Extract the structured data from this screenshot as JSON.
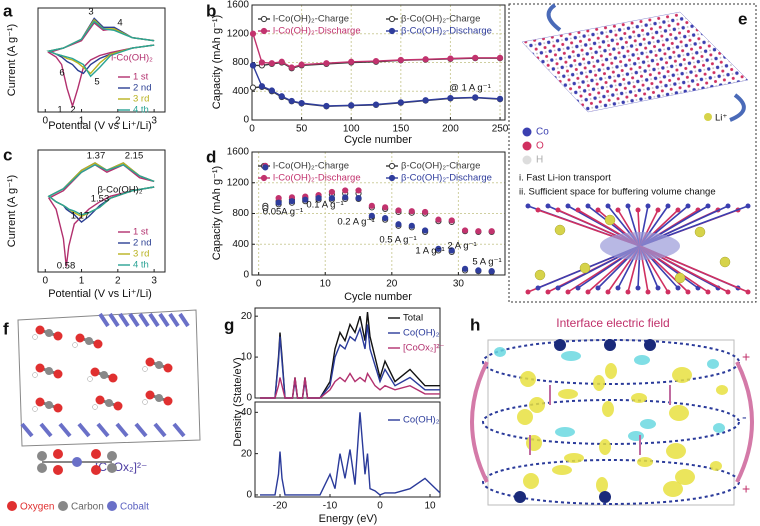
{
  "chart_data": [
    {
      "type": "line",
      "panel": "a",
      "x_label": "Potential (V vs Li⁺/Li)",
      "y_label": "Current (A g⁻¹)",
      "x": [
        3.0,
        2.4,
        1.8,
        1.5,
        1.25,
        1.05,
        0.9,
        0.75,
        0.6,
        0.45,
        0.3,
        0.1,
        0.5,
        1.0,
        1.35,
        1.6,
        1.9,
        2.4,
        3.0
      ],
      "xlim": [
        -0.2,
        3.3
      ],
      "ylim": [
        -4.2,
        2.8
      ],
      "xticks": [
        0,
        1,
        2,
        3
      ],
      "series": [
        {
          "name": "1 st",
          "color": "#b2306e",
          "values": [
            0.3,
            0.1,
            -0.2,
            -0.4,
            -0.7,
            -1.2,
            -2.6,
            -3.8,
            -2.6,
            -1.0,
            -0.5,
            -0.2,
            0.1,
            0.6,
            1.8,
            1.3,
            1.4,
            0.8,
            0.6
          ]
        },
        {
          "name": "2 nd",
          "color": "#2b3f93",
          "values": [
            0.3,
            0.1,
            -0.3,
            -0.6,
            -1.0,
            -1.6,
            -1.4,
            -1.0,
            -0.8,
            -0.5,
            -0.3,
            -0.1,
            0.1,
            0.7,
            2.1,
            1.5,
            1.5,
            0.8,
            0.6
          ]
        },
        {
          "name": "3 rd",
          "color": "#b8b21e",
          "values": [
            0.3,
            0.1,
            -0.3,
            -0.9,
            -1.6,
            -1.2,
            -0.9,
            -0.7,
            -0.6,
            -0.4,
            -0.3,
            -0.1,
            0.1,
            0.7,
            2.0,
            1.4,
            1.4,
            0.8,
            0.6
          ]
        },
        {
          "name": "4 th",
          "color": "#2aa395",
          "values": [
            0.3,
            0.1,
            -0.4,
            -1.2,
            -1.8,
            -1.0,
            -0.8,
            -0.6,
            -0.5,
            -0.4,
            -0.3,
            -0.1,
            0.1,
            0.7,
            1.9,
            1.4,
            1.3,
            0.8,
            0.6
          ]
        }
      ],
      "annotations": [
        "1",
        "2",
        "3",
        "4",
        "5",
        "6",
        "l-Co(OH)₂"
      ]
    },
    {
      "type": "line",
      "markers": true,
      "grid": true,
      "panel": "b",
      "x_label": "Cycle number",
      "y_label": "Capacity (mAh g⁻¹)",
      "x": [
        1,
        10,
        20,
        30,
        40,
        50,
        75,
        100,
        125,
        150,
        175,
        200,
        225,
        250
      ],
      "xlim": [
        0,
        255
      ],
      "ylim": [
        0,
        1600
      ],
      "xticks": [
        0,
        50,
        100,
        150,
        200,
        250
      ],
      "yticks": [
        0,
        400,
        800,
        1200,
        1600
      ],
      "series": [
        {
          "name": "l-Co(OH)₂-Charge",
          "color": "#3a3a3a",
          "marker": "open",
          "values": [
            760,
            760,
            780,
            800,
            720,
            760,
            780,
            800,
            810,
            830,
            840,
            850,
            860,
            860
          ]
        },
        {
          "name": "β-Co(OH)₂-Charge",
          "color": "#3a3a3a",
          "marker": "open",
          "values": [
            450,
            460,
            400,
            320,
            260,
            230,
            190,
            200,
            210,
            240,
            270,
            300,
            310,
            290
          ]
        },
        {
          "name": "l-Co(OH)₂-Discharge",
          "color": "#c2336e",
          "marker": "filled",
          "values": [
            1200,
            800,
            790,
            810,
            730,
            770,
            790,
            810,
            820,
            835,
            845,
            855,
            865,
            865
          ]
        },
        {
          "name": "β-Co(OH)₂-Discharge",
          "color": "#2f3d9c",
          "marker": "filled",
          "values": [
            760,
            470,
            410,
            330,
            265,
            235,
            195,
            205,
            215,
            245,
            275,
            305,
            315,
            295
          ]
        }
      ],
      "annotations": [
        "@ 1 A g⁻¹"
      ]
    },
    {
      "type": "line",
      "panel": "c",
      "x_label": "Potential (V vs Li⁺/Li)",
      "y_label": "Current (A g⁻¹)",
      "x": [
        3.0,
        2.4,
        1.8,
        1.5,
        1.2,
        1.0,
        0.8,
        0.65,
        0.58,
        0.5,
        0.3,
        0.1,
        0.5,
        1.0,
        1.37,
        1.7,
        2.15,
        2.6,
        3.0
      ],
      "xlim": [
        -0.2,
        3.3
      ],
      "ylim": [
        -4.2,
        2.4
      ],
      "xticks": [
        0,
        1,
        2,
        3
      ],
      "series": [
        {
          "name": "1 st",
          "color": "#b2306e",
          "values": [
            0.4,
            0.2,
            -0.1,
            -0.4,
            -0.8,
            -1.2,
            -1.6,
            -2.8,
            -3.9,
            -2.4,
            -0.8,
            -0.2,
            0.2,
            1.2,
            1.6,
            1.2,
            1.6,
            0.9,
            0.7
          ]
        },
        {
          "name": "2 nd",
          "color": "#2b3f93",
          "values": [
            0.4,
            0.2,
            -0.2,
            -0.6,
            -1.2,
            -1.5,
            -1.1,
            -0.9,
            -0.8,
            -0.6,
            -0.4,
            -0.1,
            0.3,
            1.3,
            1.7,
            1.3,
            1.7,
            1.0,
            0.7
          ]
        },
        {
          "name": "3 rd",
          "color": "#b8b21e",
          "values": [
            0.4,
            0.2,
            -0.2,
            -0.7,
            -1.0,
            -1.2,
            -1.0,
            -0.8,
            -0.7,
            -0.6,
            -0.4,
            -0.1,
            0.3,
            1.3,
            1.7,
            1.3,
            1.7,
            1.0,
            0.7
          ]
        },
        {
          "name": "4 th",
          "color": "#2aa395",
          "values": [
            0.4,
            0.2,
            -0.2,
            -0.7,
            -1.0,
            -1.1,
            -0.9,
            -0.8,
            -0.7,
            -0.6,
            -0.4,
            -0.1,
            0.3,
            1.2,
            1.6,
            1.3,
            1.6,
            1.0,
            0.7
          ]
        }
      ],
      "annotations": [
        "1.37",
        "2.15",
        "1.53",
        "1.17",
        "0.58",
        "β-Co(OH)₂"
      ]
    },
    {
      "type": "scatter",
      "grid": true,
      "panel": "d",
      "x_label": "Cycle number",
      "y_label": "Capacity (mAh g⁻¹)",
      "x": [
        1,
        3,
        5,
        7,
        9,
        11,
        13,
        15,
        17,
        19,
        21,
        23,
        25,
        27,
        29,
        31,
        33,
        35
      ],
      "xlim": [
        -1,
        37
      ],
      "ylim": [
        0,
        1600
      ],
      "xticks": [
        0,
        10,
        20,
        30
      ],
      "yticks": [
        0,
        400,
        800,
        1200,
        1600
      ],
      "series": [
        {
          "name": "l-Co(OH)₂-Charge",
          "color": "#3a3a3a",
          "marker": "open",
          "values": [
            900,
            960,
            980,
            1000,
            1020,
            1050,
            1060,
            1060,
            880,
            860,
            820,
            810,
            800,
            700,
            690,
            570,
            560,
            560
          ]
        },
        {
          "name": "β-Co(OH)₂-Charge",
          "color": "#3a3a3a",
          "marker": "open",
          "values": [
            870,
            920,
            940,
            960,
            980,
            980,
            990,
            990,
            750,
            720,
            640,
            620,
            560,
            320,
            300,
            60,
            50,
            40
          ]
        },
        {
          "name": "l-Co(OH)₂-Discharge",
          "color": "#c2336e",
          "marker": "filled",
          "values": [
            1420,
            1000,
            1010,
            1020,
            1040,
            1080,
            1100,
            1100,
            900,
            880,
            840,
            830,
            820,
            720,
            710,
            580,
            570,
            570
          ]
        },
        {
          "name": "β-Co(OH)₂-Discharge",
          "color": "#2f3d9c",
          "marker": "filled",
          "values": [
            1400,
            940,
            960,
            980,
            1000,
            1000,
            1010,
            1000,
            770,
            740,
            660,
            640,
            580,
            340,
            320,
            80,
            60,
            50
          ]
        }
      ],
      "annotations": [
        "0.05A g⁻¹",
        "0.1 A g⁻¹",
        "0.2 A g⁻¹",
        "0.5 A g⁻¹",
        "1 A g⁻¹",
        "2 A g⁻¹",
        "5 A g⁻¹"
      ]
    },
    {
      "type": "line",
      "panel": "g",
      "y_label": "Density (State/eV)",
      "x": [
        -24,
        -21,
        -20.3,
        -20,
        -19.6,
        -19,
        -17.5,
        -17,
        -16.5,
        -15.5,
        -15,
        -14.5,
        -12,
        -10,
        -9,
        -8,
        -7,
        -6,
        -5,
        -4,
        -3,
        -2.5,
        -2,
        -1,
        0,
        1,
        3,
        6,
        9,
        12
      ],
      "xlim": [
        -25,
        12
      ],
      "ylim": [
        0,
        22
      ],
      "yticks": [
        0,
        10,
        20
      ],
      "series": [
        {
          "name": "Total",
          "color": "#111111",
          "values": [
            0,
            0,
            10,
            16,
            10,
            0,
            0,
            5,
            0,
            0,
            5,
            0,
            0,
            4,
            12,
            16,
            14,
            18,
            16,
            20,
            14,
            21,
            15,
            10,
            5,
            9,
            4,
            7,
            3,
            3
          ]
        },
        {
          "name": "Co(OH)₂",
          "color": "#2a3a9a",
          "values": [
            0,
            0,
            9,
            15,
            9,
            0,
            0,
            4,
            0,
            0,
            4,
            0,
            0,
            3,
            10,
            13,
            12,
            15,
            14,
            17,
            12,
            18,
            12,
            8,
            4,
            7,
            3,
            5,
            2,
            2
          ]
        },
        {
          "name": "[CoOx₂]²⁻",
          "color": "#b2306e",
          "values": [
            0,
            0,
            3,
            5,
            3,
            0,
            0,
            5,
            0,
            0,
            5,
            0,
            0,
            2,
            4,
            5,
            4,
            6,
            4,
            5,
            4,
            6,
            5,
            3,
            2,
            3,
            2,
            3,
            1,
            1
          ]
        }
      ]
    },
    {
      "type": "line",
      "x_label": "Energy (eV)",
      "x": [
        -24,
        -21,
        -20.3,
        -20,
        -19.6,
        -19,
        -17.5,
        -17,
        -16.5,
        -15.5,
        -15,
        -14.5,
        -12,
        -10,
        -9,
        -8,
        -7,
        -6,
        -5,
        -4,
        -3,
        -2.5,
        -2,
        -1,
        0,
        1,
        3,
        6,
        9,
        12
      ],
      "xlim": [
        -25,
        12
      ],
      "ylim": [
        -1,
        45
      ],
      "xticks": [
        -20,
        -10,
        0,
        10
      ],
      "yticks": [
        0,
        20,
        40
      ],
      "series": [
        {
          "name": "Co(OH)₂",
          "color": "#2a3a9a",
          "values": [
            0,
            0,
            10,
            21,
            8,
            0,
            0,
            0,
            0,
            0,
            0,
            0,
            0,
            10,
            3,
            20,
            8,
            22,
            5,
            40,
            10,
            20,
            3,
            2,
            0,
            1,
            1,
            3,
            8,
            1
          ]
        }
      ]
    }
  ],
  "figure": {
    "e": {
      "panel": "e",
      "legend": [
        "Co",
        "O",
        "H"
      ],
      "ion": "Li⁺",
      "notes": [
        "i. Fast Li-ion transport",
        "ii. Sufficient space for buffering volume change"
      ]
    },
    "f": {
      "panel": "f",
      "formula": "[CoOx₂]²⁻",
      "legend": [
        "Oxygen",
        "Carbon",
        "Cobalt"
      ]
    },
    "h": {
      "panel": "h",
      "title": "Interface electric field",
      "charges": [
        "+",
        "-",
        "+"
      ]
    }
  }
}
